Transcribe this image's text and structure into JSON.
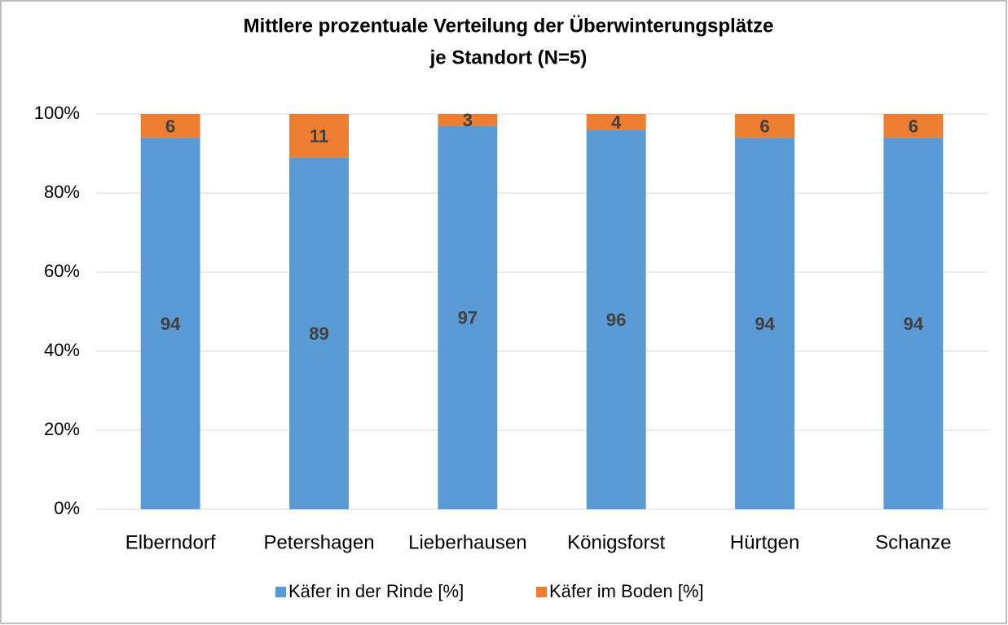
{
  "chart_data": {
    "type": "stacked_bar",
    "title": [
      "Mittlere prozentuale Verteilung der Überwinterungsplätze",
      "je Standort (N=5)"
    ],
    "categories": [
      "Elberndorf",
      "Petershagen",
      "Lieberhausen",
      "Königsforst",
      "Hürtgen",
      "Schanze"
    ],
    "series": [
      {
        "name": "Käfer in der Rinde [%]",
        "color": "#5b9bd5",
        "values": [
          94,
          89,
          97,
          96,
          94,
          94
        ]
      },
      {
        "name": "Käfer im Boden [%]",
        "color": "#ed7d31",
        "values": [
          6,
          11,
          3,
          4,
          6,
          6
        ]
      }
    ],
    "ylim": [
      0,
      100
    ],
    "yticks": [
      {
        "value": 0,
        "label": "0%"
      },
      {
        "value": 20,
        "label": "20%"
      },
      {
        "value": 40,
        "label": "40%"
      },
      {
        "value": 60,
        "label": "60%"
      },
      {
        "value": 80,
        "label": "80%"
      },
      {
        "value": 100,
        "label": "100%"
      }
    ],
    "grid": true,
    "legend": "bottom"
  }
}
